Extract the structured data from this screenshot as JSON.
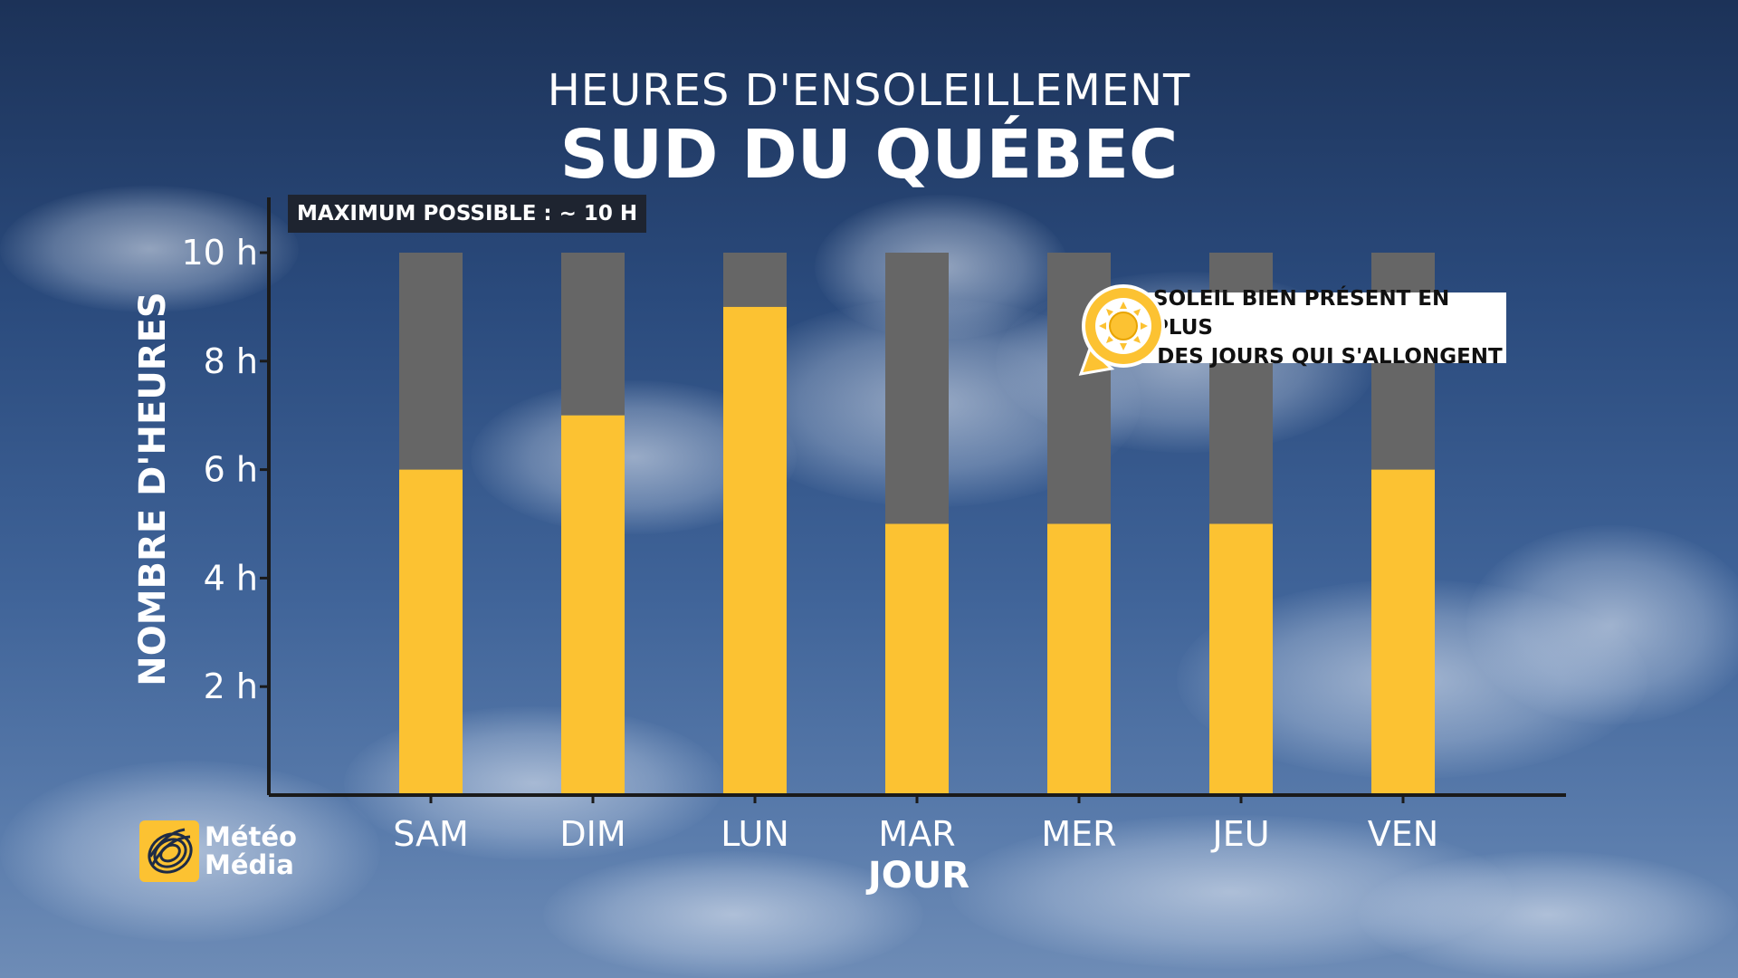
{
  "title": "HEURES D'ENSOLEILLEMENT",
  "subtitle": "SUD DU QUÉBEC",
  "max_badge": "MAXIMUM POSSIBLE : ~ 10 H",
  "annotation": {
    "line1": "SOLEIL BIEN PRÉSENT EN PLUS",
    "line2": "DES JOURS QUI S'ALLONGENT"
  },
  "logo": {
    "line1": "Météo",
    "line2": "Média"
  },
  "colors": {
    "sun": "#fcc232",
    "remaining": "#666666",
    "axis": "#1a1a1a"
  },
  "chart_data": {
    "type": "bar",
    "stacked": true,
    "categories": [
      "SAM",
      "DIM",
      "LUN",
      "MAR",
      "MER",
      "JEU",
      "VEN"
    ],
    "series": [
      {
        "values": [
          6,
          7,
          9,
          5,
          5,
          5,
          6
        ]
      },
      {
        "values": [
          4,
          3,
          1,
          5,
          5,
          5,
          4
        ]
      }
    ],
    "xlabel": "JOUR",
    "ylabel": "NOMBRE D'HEURES",
    "ylim": [
      0,
      10
    ],
    "yticks": [
      2,
      4,
      6,
      8,
      10
    ],
    "ytick_labels": [
      "2 h",
      "4 h",
      "6 h",
      "8 h",
      "10 h"
    ],
    "grid": false,
    "legend": "none"
  }
}
